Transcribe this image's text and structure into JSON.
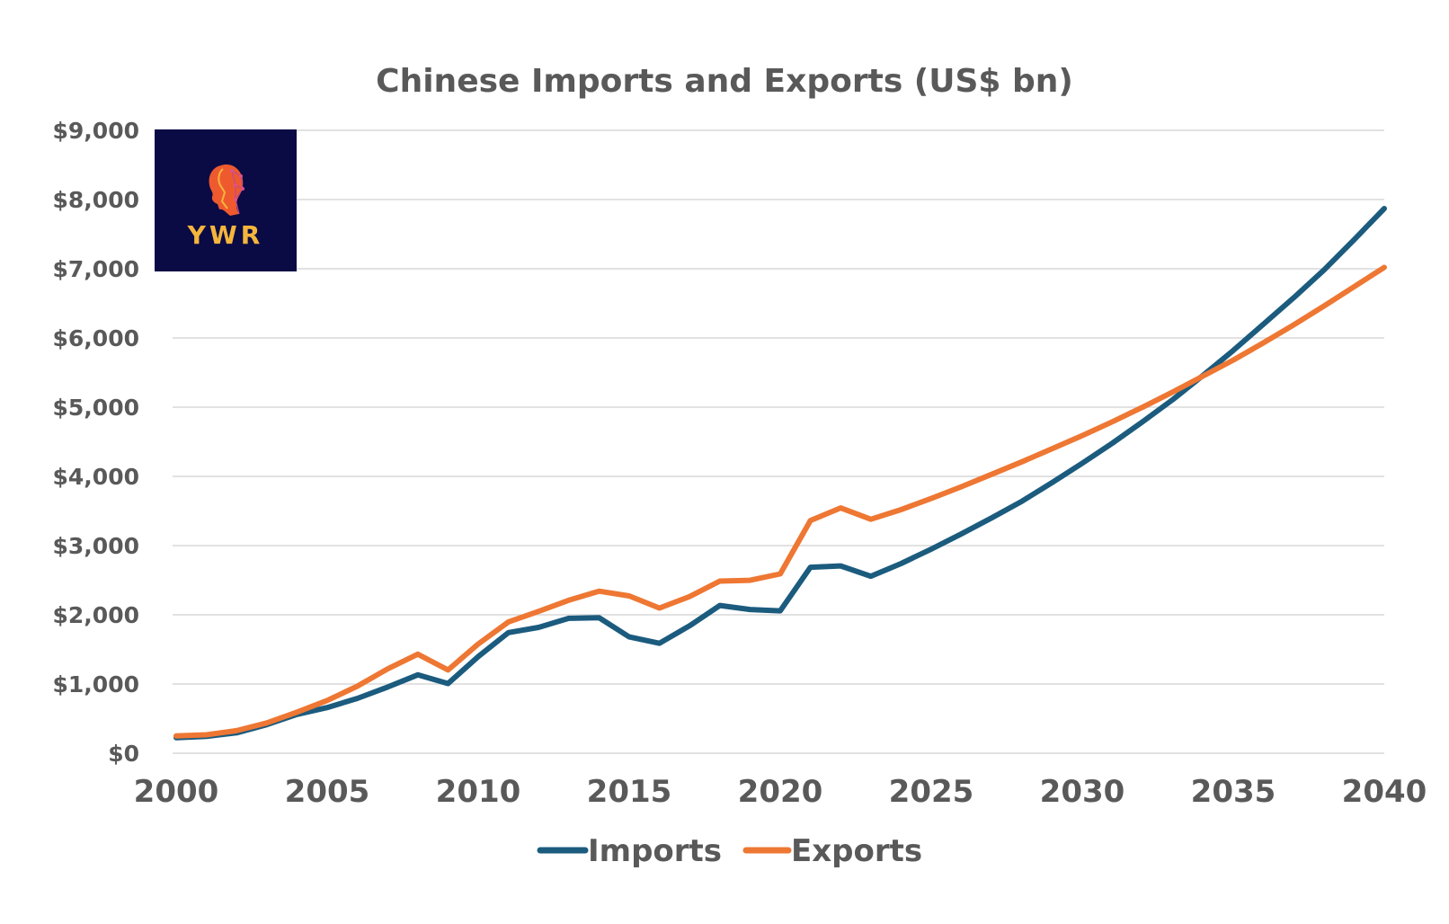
{
  "colors": {
    "imports": "#1B5B7E",
    "exports": "#EE7733",
    "gridline": "#D9D9D9",
    "text": "#595959",
    "logo_bg": "#0A0A45",
    "logo_text": "#F5B53C"
  },
  "logo": {
    "text": "YWR",
    "icon": "head-profile-icon"
  },
  "chart_data": {
    "type": "line",
    "title": "Chinese Imports and Exports (US$ bn)",
    "xlabel": "",
    "ylabel": "",
    "xlim": [
      2000,
      2040
    ],
    "ylim": [
      0,
      9000
    ],
    "x_ticks": [
      2000,
      2005,
      2010,
      2015,
      2020,
      2025,
      2030,
      2035,
      2040
    ],
    "x_tick_labels": [
      "2000",
      "2005",
      "2010",
      "2015",
      "2020",
      "2025",
      "2030",
      "2035",
      "2040"
    ],
    "y_ticks": [
      0,
      1000,
      2000,
      3000,
      4000,
      5000,
      6000,
      7000,
      8000,
      9000
    ],
    "y_tick_labels": [
      "$0",
      "$1,000",
      "$2,000",
      "$3,000",
      "$4,000",
      "$5,000",
      "$6,000",
      "$7,000",
      "$8,000",
      "$9,000"
    ],
    "grid": true,
    "legend_position": "bottom",
    "x": [
      2000,
      2001,
      2002,
      2003,
      2004,
      2005,
      2006,
      2007,
      2008,
      2009,
      2010,
      2011,
      2012,
      2013,
      2014,
      2015,
      2016,
      2017,
      2018,
      2019,
      2020,
      2021,
      2022,
      2023,
      2024,
      2025,
      2026,
      2027,
      2028,
      2029,
      2030,
      2031,
      2032,
      2033,
      2034,
      2035,
      2036,
      2037,
      2038,
      2039,
      2040
    ],
    "series": [
      {
        "name": "Imports",
        "values": [
          225,
          243,
          295,
          413,
          561,
          660,
          792,
          956,
          1133,
          1006,
          1396,
          1743,
          1818,
          1950,
          1959,
          1680,
          1588,
          1842,
          2135,
          2077,
          2057,
          2687,
          2706,
          2557,
          2740,
          2950,
          3170,
          3400,
          3640,
          3910,
          4190,
          4480,
          4790,
          5110,
          5460,
          5820,
          6200,
          6580,
          6980,
          7420,
          7870
        ]
      },
      {
        "name": "Exports",
        "values": [
          249,
          266,
          326,
          438,
          593,
          762,
          969,
          1218,
          1431,
          1202,
          1578,
          1898,
          2049,
          2210,
          2342,
          2273,
          2098,
          2263,
          2487,
          2499,
          2591,
          3362,
          3544,
          3380,
          3520,
          3680,
          3850,
          4030,
          4210,
          4400,
          4590,
          4790,
          5000,
          5220,
          5450,
          5680,
          5930,
          6190,
          6460,
          6740,
          7020
        ]
      }
    ]
  }
}
